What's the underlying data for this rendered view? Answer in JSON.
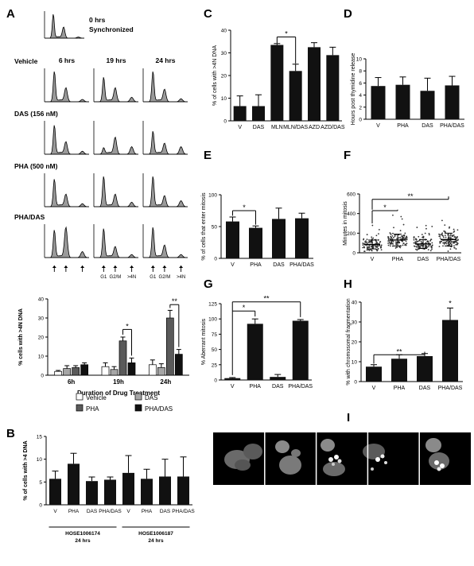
{
  "panel_letters": [
    "A",
    "B",
    "C",
    "D",
    "E",
    "F",
    "G",
    "H",
    "I"
  ],
  "flow": {
    "header_row": {
      "time": "0 hrs",
      "note": "Synchronized"
    },
    "time_labels": [
      "6 hrs",
      "19 hrs",
      "24 hrs"
    ],
    "row_labels": [
      "Vehicle",
      "DAS (156 nM)",
      "PHA (500 nM)",
      "PHA/DAS"
    ],
    "phase_labels": [
      "G1",
      "G2/M",
      ">4N"
    ],
    "histogram_peaks": [
      [
        1.0,
        0.45,
        0.08
      ],
      [
        0.8,
        0.45,
        0.15
      ],
      [
        1.0,
        0.4,
        0.1
      ],
      [
        0.95,
        0.4,
        0.1
      ],
      [
        0.2,
        0.55,
        0.25
      ],
      [
        0.75,
        0.35,
        0.25
      ],
      [
        0.9,
        0.4,
        0.1
      ],
      [
        1.0,
        0.4,
        0.15
      ],
      [
        1.0,
        0.35,
        0.2
      ],
      [
        0.9,
        1.0,
        0.2
      ],
      [
        0.95,
        0.35,
        0.1
      ],
      [
        1.0,
        0.4,
        0.1
      ]
    ],
    "header_peaks": [
      1.0,
      0.45,
      0.05
    ]
  },
  "chart_data": [
    {
      "panel": "A",
      "type": "bar",
      "categories": [
        "6h",
        "19h",
        "24h"
      ],
      "series": [
        {
          "name": "Vehicle",
          "color": "#ffffff",
          "values": [
            2,
            4.5,
            5.5
          ],
          "err": [
            0.5,
            2,
            2.5
          ]
        },
        {
          "name": "DAS",
          "color": "#a6a6a6",
          "values": [
            3.5,
            3,
            4
          ],
          "err": [
            1.5,
            1.5,
            2
          ]
        },
        {
          "name": "PHA",
          "color": "#5a5a5a",
          "values": [
            4,
            18,
            30
          ],
          "err": [
            1,
            2,
            4
          ]
        },
        {
          "name": "PHA/DAS",
          "color": "#111111",
          "values": [
            5.5,
            6.5,
            11
          ],
          "err": [
            1,
            2.5,
            2.5
          ]
        }
      ],
      "ylim": [
        0,
        40
      ],
      "yticks": [
        0,
        10,
        20,
        30,
        40
      ],
      "ylabel": "% cells with >4N DNA",
      "xlabel": "Duration of Drug Treatment",
      "sig": [
        "*",
        "**"
      ],
      "legend_position": "bottom"
    },
    {
      "panel": "B",
      "type": "bar",
      "categories": [
        "V",
        "PHA",
        "DAS",
        "PHA/DAS",
        "V",
        "PHA",
        "DAS",
        "PHA/DAS"
      ],
      "values": [
        5.7,
        9,
        5.2,
        5.5,
        7,
        5.7,
        6.2,
        6.2
      ],
      "err": [
        1.7,
        2.3,
        0.9,
        0.6,
        3.8,
        2.1,
        3.8,
        4.3
      ],
      "ylim": [
        0,
        15
      ],
      "yticks": [
        0,
        5,
        10,
        15
      ],
      "ylabel": "% of cells with >4 DNA",
      "groups": [
        {
          "line1": "HOSE1006174",
          "line2": "24 hrs"
        },
        {
          "line1": "HOSE1006187",
          "line2": "24 hrs"
        }
      ]
    },
    {
      "panel": "C",
      "type": "bar",
      "categories": [
        "V",
        "DAS",
        "MLN",
        "MLN/DAS",
        "AZD",
        "AZD/DAS"
      ],
      "values": [
        6.5,
        6.5,
        33.5,
        22,
        32.5,
        29
      ],
      "err": [
        4.5,
        5,
        0.6,
        3,
        2,
        3.5
      ],
      "ylim": [
        0,
        40
      ],
      "yticks": [
        0,
        10,
        20,
        30,
        40
      ],
      "ylabel": "% of cells with >4N DNA",
      "sig": [
        "*"
      ]
    },
    {
      "panel": "D",
      "type": "bar",
      "categories": [
        "V",
        "PHA",
        "DAS",
        "PHA/DAS"
      ],
      "values": [
        5.5,
        5.7,
        4.7,
        5.6
      ],
      "err": [
        1.4,
        1.3,
        2.1,
        1.5
      ],
      "ylim": [
        0,
        10
      ],
      "yticks": [
        0,
        2,
        4,
        6,
        8,
        10
      ],
      "ylabel": "Hours post thymidine release"
    },
    {
      "panel": "E",
      "type": "bar",
      "categories": [
        "V",
        "PHA",
        "DAS",
        "PHA/DAS"
      ],
      "values": [
        58,
        48,
        62,
        63
      ],
      "err": [
        7,
        3,
        17,
        8
      ],
      "ylim": [
        0,
        100
      ],
      "yticks": [
        0,
        50,
        100
      ],
      "ylabel": "% of cells that enter mitosis",
      "sig": [
        "*"
      ]
    },
    {
      "panel": "F",
      "type": "scatter",
      "categories": [
        "V",
        "PHA",
        "DAS",
        "PHA/DAS"
      ],
      "means": [
        85,
        130,
        90,
        135
      ],
      "sd": [
        45,
        60,
        45,
        65
      ],
      "ylim": [
        0,
        600
      ],
      "yticks": [
        0,
        200,
        400,
        600
      ],
      "ylabel": "Minutes in mitosis",
      "sig": [
        "*",
        "**"
      ]
    },
    {
      "panel": "G",
      "type": "bar",
      "categories": [
        "V",
        "PHA",
        "DAS",
        "PHA/DAS"
      ],
      "values": [
        3,
        92,
        5,
        97
      ],
      "err": [
        1,
        8,
        4,
        2
      ],
      "ylim": [
        0,
        125
      ],
      "yticks": [
        0,
        25,
        50,
        75,
        100,
        125
      ],
      "ylabel": "% Aberrant mitosis",
      "sig": [
        "*",
        "**"
      ]
    },
    {
      "panel": "H",
      "type": "bar",
      "categories": [
        "V",
        "PHA",
        "DAS",
        "PHA/DAS"
      ],
      "values": [
        7.5,
        11.5,
        12.8,
        31
      ],
      "err": [
        1,
        2,
        1.3,
        6
      ],
      "ylim": [
        0,
        40
      ],
      "yticks": [
        0,
        10,
        20,
        30,
        40
      ],
      "ylabel": "% with chromosomal fragmentation",
      "sig": [
        "**",
        "*"
      ]
    }
  ]
}
